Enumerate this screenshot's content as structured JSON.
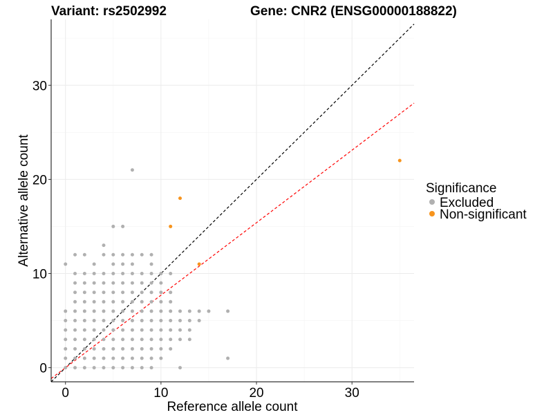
{
  "chart_data": {
    "type": "scatter",
    "title_variant": "Variant: rs2502992",
    "title_gene": "Gene: CNR2 (ENSG00000188822)",
    "xlabel": "Reference allele count",
    "ylabel": "Alternative allele count",
    "xlim": [
      -1.5,
      36.5
    ],
    "ylim": [
      -1.5,
      37
    ],
    "xticks": [
      0,
      10,
      20,
      30
    ],
    "yticks": [
      0,
      10,
      20,
      30
    ],
    "grid": true,
    "legend": {
      "title": "Significance",
      "placement": "right",
      "entries": [
        {
          "label": "Excluded",
          "color": "#b0b0b0"
        },
        {
          "label": "Non-significant",
          "color": "#f7941d"
        }
      ]
    },
    "reference_lines": [
      {
        "slope": 1.0,
        "intercept": 0,
        "color": "#000000",
        "style": "dashed"
      },
      {
        "slope": 0.77,
        "intercept": 0,
        "color": "#ff0000",
        "style": "dashed"
      }
    ],
    "series": [
      {
        "name": "Excluded",
        "color": "#b0b0b0",
        "points": [
          [
            0,
            0
          ],
          [
            0,
            1
          ],
          [
            0,
            2
          ],
          [
            0,
            3
          ],
          [
            0,
            4
          ],
          [
            0,
            5
          ],
          [
            0,
            6
          ],
          [
            0,
            11
          ],
          [
            1,
            0
          ],
          [
            1,
            1
          ],
          [
            1,
            2
          ],
          [
            1,
            3
          ],
          [
            1,
            4
          ],
          [
            1,
            5
          ],
          [
            1,
            6
          ],
          [
            1,
            7
          ],
          [
            1,
            8
          ],
          [
            1,
            9
          ],
          [
            1,
            10
          ],
          [
            1,
            12
          ],
          [
            2,
            0
          ],
          [
            2,
            1
          ],
          [
            2,
            2
          ],
          [
            2,
            3
          ],
          [
            2,
            4
          ],
          [
            2,
            5
          ],
          [
            2,
            6
          ],
          [
            2,
            7
          ],
          [
            2,
            8
          ],
          [
            2,
            9
          ],
          [
            2,
            10
          ],
          [
            2,
            12
          ],
          [
            3,
            0
          ],
          [
            3,
            1
          ],
          [
            3,
            2
          ],
          [
            3,
            3
          ],
          [
            3,
            4
          ],
          [
            3,
            5
          ],
          [
            3,
            6
          ],
          [
            3,
            7
          ],
          [
            3,
            8
          ],
          [
            3,
            9
          ],
          [
            3,
            10
          ],
          [
            3,
            11
          ],
          [
            4,
            0
          ],
          [
            4,
            1
          ],
          [
            4,
            2
          ],
          [
            4,
            3
          ],
          [
            4,
            4
          ],
          [
            4,
            5
          ],
          [
            4,
            6
          ],
          [
            4,
            7
          ],
          [
            4,
            8
          ],
          [
            4,
            9
          ],
          [
            4,
            10
          ],
          [
            4,
            12
          ],
          [
            4,
            13
          ],
          [
            5,
            0
          ],
          [
            5,
            1
          ],
          [
            5,
            2
          ],
          [
            5,
            3
          ],
          [
            5,
            4
          ],
          [
            5,
            5
          ],
          [
            5,
            6
          ],
          [
            5,
            7
          ],
          [
            5,
            8
          ],
          [
            5,
            9
          ],
          [
            5,
            10
          ],
          [
            5,
            11
          ],
          [
            5,
            12
          ],
          [
            5,
            15
          ],
          [
            6,
            0
          ],
          [
            6,
            1
          ],
          [
            6,
            2
          ],
          [
            6,
            3
          ],
          [
            6,
            4
          ],
          [
            6,
            5
          ],
          [
            6,
            6
          ],
          [
            6,
            7
          ],
          [
            6,
            8
          ],
          [
            6,
            9
          ],
          [
            6,
            10
          ],
          [
            6,
            11
          ],
          [
            6,
            12
          ],
          [
            6,
            15
          ],
          [
            7,
            0
          ],
          [
            7,
            1
          ],
          [
            7,
            2
          ],
          [
            7,
            3
          ],
          [
            7,
            4
          ],
          [
            7,
            5
          ],
          [
            7,
            6
          ],
          [
            7,
            7
          ],
          [
            7,
            8
          ],
          [
            7,
            9
          ],
          [
            7,
            10
          ],
          [
            7,
            11
          ],
          [
            7,
            12
          ],
          [
            7,
            21
          ],
          [
            8,
            0
          ],
          [
            8,
            1
          ],
          [
            8,
            2
          ],
          [
            8,
            3
          ],
          [
            8,
            4
          ],
          [
            8,
            5
          ],
          [
            8,
            6
          ],
          [
            8,
            7
          ],
          [
            8,
            8
          ],
          [
            8,
            9
          ],
          [
            8,
            10
          ],
          [
            8,
            12
          ],
          [
            9,
            0
          ],
          [
            9,
            1
          ],
          [
            9,
            2
          ],
          [
            9,
            3
          ],
          [
            9,
            4
          ],
          [
            9,
            5
          ],
          [
            9,
            6
          ],
          [
            9,
            7
          ],
          [
            9,
            8
          ],
          [
            9,
            9
          ],
          [
            9,
            10
          ],
          [
            9,
            11
          ],
          [
            9,
            12
          ],
          [
            10,
            1
          ],
          [
            10,
            2
          ],
          [
            10,
            3
          ],
          [
            10,
            4
          ],
          [
            10,
            5
          ],
          [
            10,
            6
          ],
          [
            10,
            7
          ],
          [
            10,
            8
          ],
          [
            10,
            9
          ],
          [
            10,
            10
          ],
          [
            11,
            2
          ],
          [
            11,
            3
          ],
          [
            11,
            4
          ],
          [
            11,
            5
          ],
          [
            11,
            6
          ],
          [
            11,
            7
          ],
          [
            11,
            8
          ],
          [
            11,
            10
          ],
          [
            12,
            0
          ],
          [
            12,
            3
          ],
          [
            12,
            4
          ],
          [
            12,
            5
          ],
          [
            12,
            6
          ],
          [
            13,
            3
          ],
          [
            13,
            4
          ],
          [
            13,
            5
          ],
          [
            13,
            6
          ],
          [
            14,
            5
          ],
          [
            14,
            6
          ],
          [
            15,
            6
          ],
          [
            17,
            1
          ],
          [
            17,
            6
          ]
        ]
      },
      {
        "name": "Non-significant",
        "color": "#f7941d",
        "points": [
          [
            11,
            15
          ],
          [
            12,
            18
          ],
          [
            14,
            11
          ],
          [
            35,
            22
          ]
        ]
      }
    ]
  }
}
